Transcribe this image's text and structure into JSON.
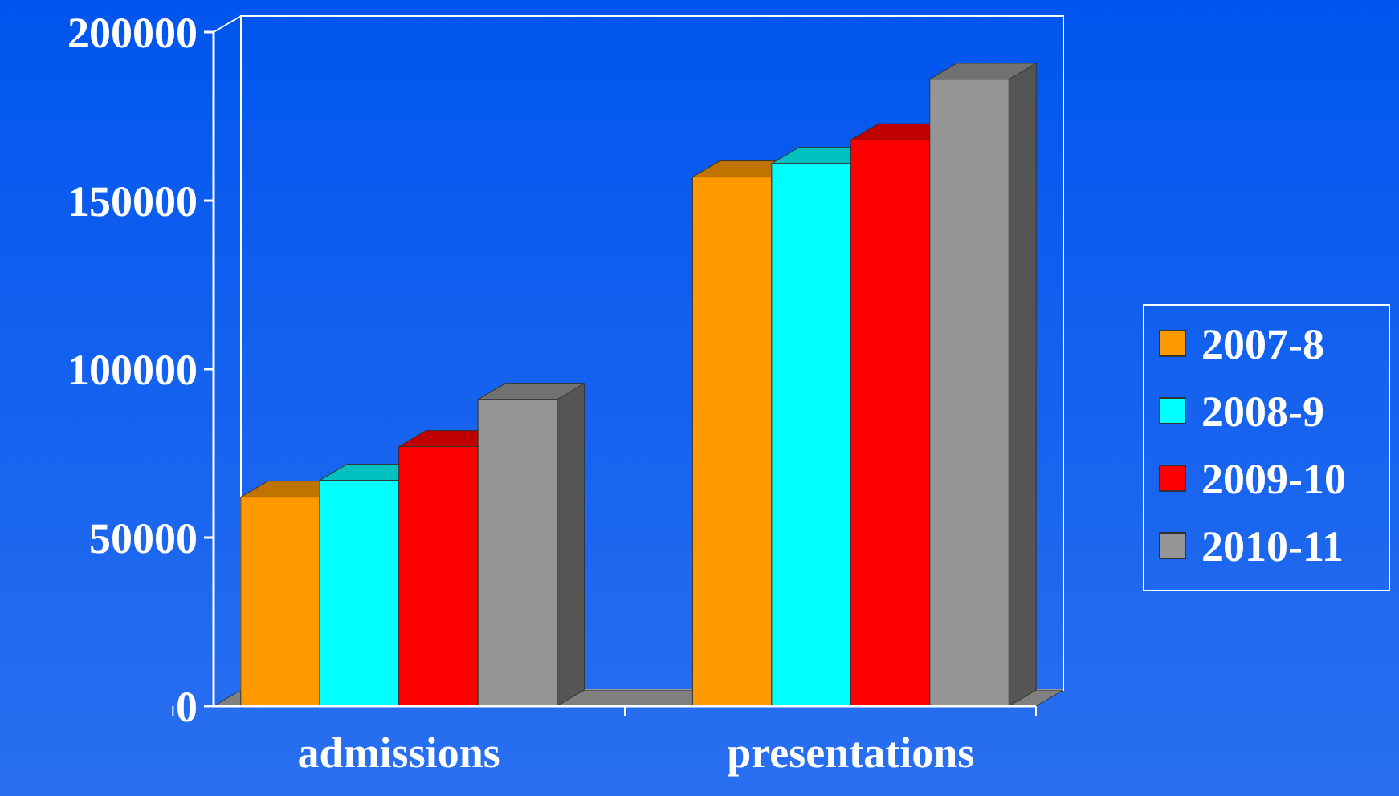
{
  "chart_data": {
    "type": "bar",
    "categories": [
      "admissions",
      "presentations"
    ],
    "series": [
      {
        "name": "2007-8",
        "color": "#ff9900",
        "values": [
          62000,
          157000
        ]
      },
      {
        "name": "2008-9",
        "color": "#00ffff",
        "values": [
          67000,
          161000
        ]
      },
      {
        "name": "2009-10",
        "color": "#ff0000",
        "values": [
          77000,
          168000
        ]
      },
      {
        "name": "2010-11",
        "color": "#969696",
        "values": [
          91000,
          186000
        ]
      }
    ],
    "ylim": [
      0,
      200000
    ],
    "yticks": [
      0,
      50000,
      100000,
      150000,
      200000
    ],
    "grid": false,
    "legend": "right"
  }
}
